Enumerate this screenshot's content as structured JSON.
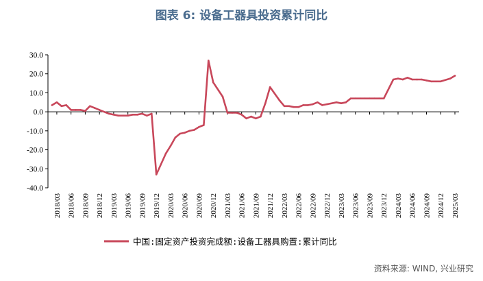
{
  "title": "图表 6:  设备工器具投资累计同比",
  "source": "资料来源: WIND, 兴业研究",
  "colors": {
    "series": "#c8475a",
    "axis": "#000000",
    "text": "#000000"
  },
  "chart_data": {
    "type": "line",
    "title": "图表 6:  设备工器具投资累计同比",
    "xlabel": "",
    "ylabel": "",
    "ylim": [
      -40,
      30
    ],
    "yticks": [
      "30.0",
      "20.0",
      "10.0",
      "0.0",
      "-10.0",
      "-20.0",
      "-30.0",
      "-40.0"
    ],
    "grid": false,
    "legend_position": "bottom",
    "xtick_labels": [
      "2018/03",
      "2018/06",
      "2018/09",
      "2018/12",
      "2019/03",
      "2019/06",
      "2019/09",
      "2019/12",
      "2020/03",
      "2020/06",
      "2020/09",
      "2020/12",
      "2021/03",
      "2021/06",
      "2021/09",
      "2021/12",
      "2022/03",
      "2022/06",
      "2022/09",
      "2022/12",
      "2023/03",
      "2023/06",
      "2023/09",
      "2023/12",
      "2024/03",
      "2024/06",
      "2024/09",
      "2024/12",
      "2025/03"
    ],
    "series": [
      {
        "name": "中国:固定资产投资完成额:设备工器具购置:累计同比",
        "x": [
          "2018/02",
          "2018/03",
          "2018/04",
          "2018/05",
          "2018/06",
          "2018/07",
          "2018/08",
          "2018/09",
          "2018/10",
          "2018/11",
          "2018/12",
          "2019/02",
          "2019/03",
          "2019/04",
          "2019/05",
          "2019/06",
          "2019/07",
          "2019/08",
          "2019/09",
          "2019/10",
          "2019/11",
          "2019/12",
          "2020/02",
          "2020/03",
          "2020/04",
          "2020/05",
          "2020/06",
          "2020/07",
          "2020/08",
          "2020/09",
          "2020/10",
          "2020/11",
          "2020/12",
          "2021/02",
          "2021/03",
          "2021/04",
          "2021/05",
          "2021/06",
          "2021/07",
          "2021/08",
          "2021/09",
          "2021/10",
          "2021/11",
          "2021/12",
          "2022/02",
          "2022/03",
          "2022/04",
          "2022/05",
          "2022/06",
          "2022/07",
          "2022/08",
          "2022/09",
          "2022/10",
          "2022/11",
          "2022/12",
          "2023/02",
          "2023/03",
          "2023/04",
          "2023/05",
          "2023/06",
          "2023/07",
          "2023/08",
          "2023/09",
          "2023/10",
          "2023/11",
          "2023/12",
          "2024/02",
          "2024/03",
          "2024/04",
          "2024/05",
          "2024/06",
          "2024/07",
          "2024/08",
          "2024/09",
          "2024/10",
          "2024/11",
          "2024/12",
          "2025/02",
          "2025/03"
        ],
        "values": [
          3.5,
          5.0,
          3.0,
          3.5,
          1.0,
          1.0,
          1.0,
          0.5,
          3.0,
          2.0,
          1.0,
          -1.0,
          -1.5,
          -2.0,
          -2.0,
          -2.0,
          -1.5,
          -1.5,
          -1.0,
          -2.0,
          -1.0,
          -33.0,
          -22.0,
          -18.0,
          -13.5,
          -11.5,
          -11.0,
          -10.0,
          -9.5,
          -8.0,
          -7.0,
          27.0,
          15.5,
          8.0,
          -0.5,
          -0.5,
          -0.5,
          -1.5,
          -3.5,
          -2.5,
          -3.5,
          -2.5,
          4.5,
          13.0,
          6.0,
          3.0,
          3.0,
          2.5,
          2.5,
          3.5,
          3.5,
          4.0,
          5.0,
          3.5,
          4.0,
          5.0,
          4.5,
          5.0,
          7.0,
          7.0,
          7.0,
          7.0,
          7.0,
          7.0,
          7.0,
          7.0,
          17.0,
          17.5,
          17.0,
          18.0,
          17.0,
          17.0,
          17.0,
          16.5,
          16.0,
          16.0,
          16.0,
          17.5,
          19.0
        ]
      }
    ]
  }
}
